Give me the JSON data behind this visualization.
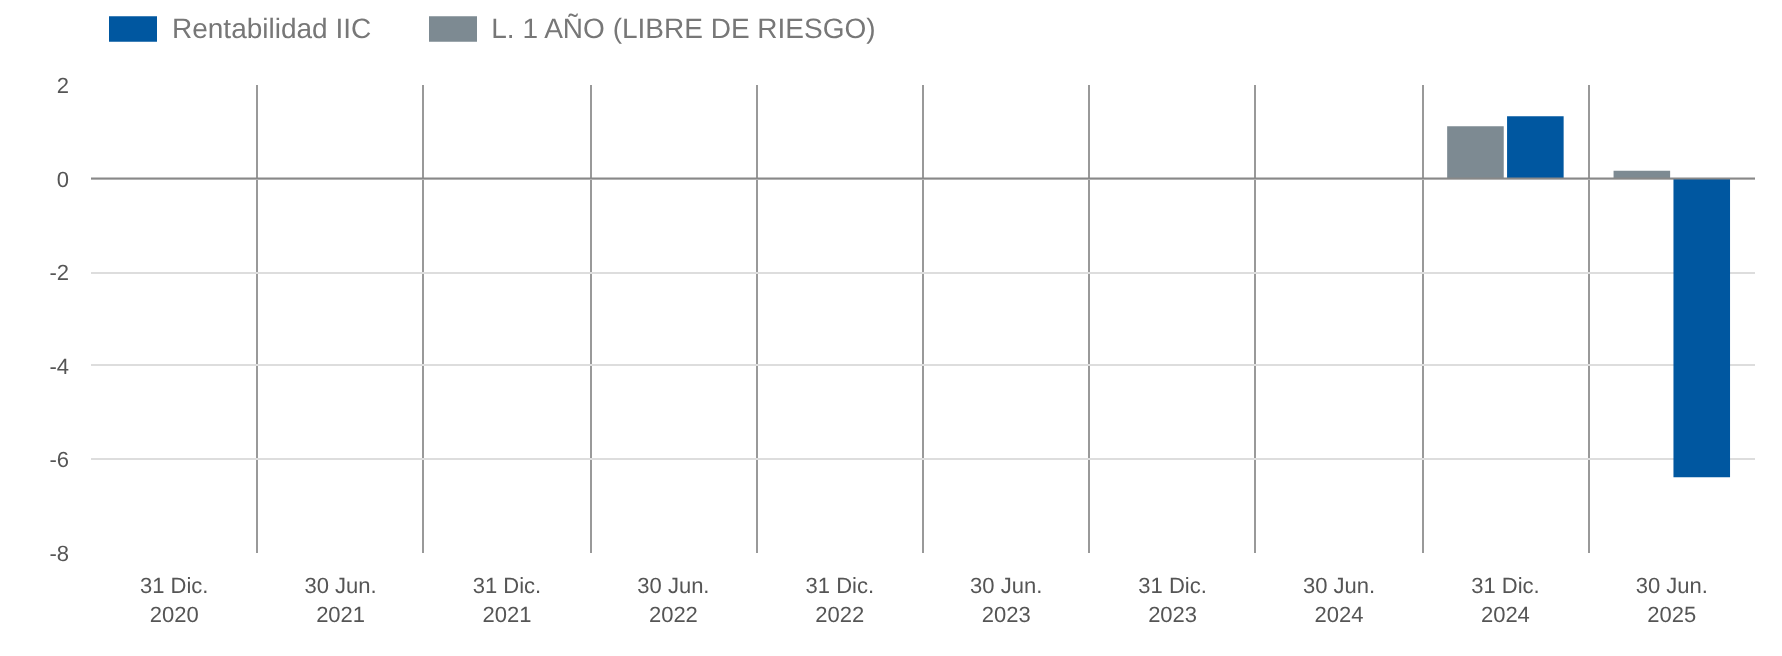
{
  "chart_data": {
    "type": "bar",
    "categories": [
      "31 Dic.\n2020",
      "30 Jun.\n2021",
      "31 Dic.\n2021",
      "30 Jun.\n2022",
      "31 Dic.\n2022",
      "30 Jun.\n2023",
      "31 Dic.\n2023",
      "30 Jun.\n2024",
      "31 Dic.\n2024",
      "30 Jun.\n2025"
    ],
    "series": [
      {
        "name": "L. 1 AÑO (LIBRE DE RIESGO)",
        "color": "#7d8a92",
        "values": [
          null,
          null,
          null,
          null,
          null,
          null,
          null,
          null,
          1.12,
          0.17
        ]
      },
      {
        "name": "Rentabilidad IIC",
        "color": "#0057a0",
        "values": [
          null,
          null,
          null,
          null,
          null,
          null,
          null,
          null,
          1.33,
          -6.38
        ]
      }
    ],
    "ylim": [
      -8,
      2
    ],
    "yticks": [
      -8,
      -6,
      -4,
      -2,
      0,
      2
    ],
    "grid": true,
    "legend": "top left"
  }
}
